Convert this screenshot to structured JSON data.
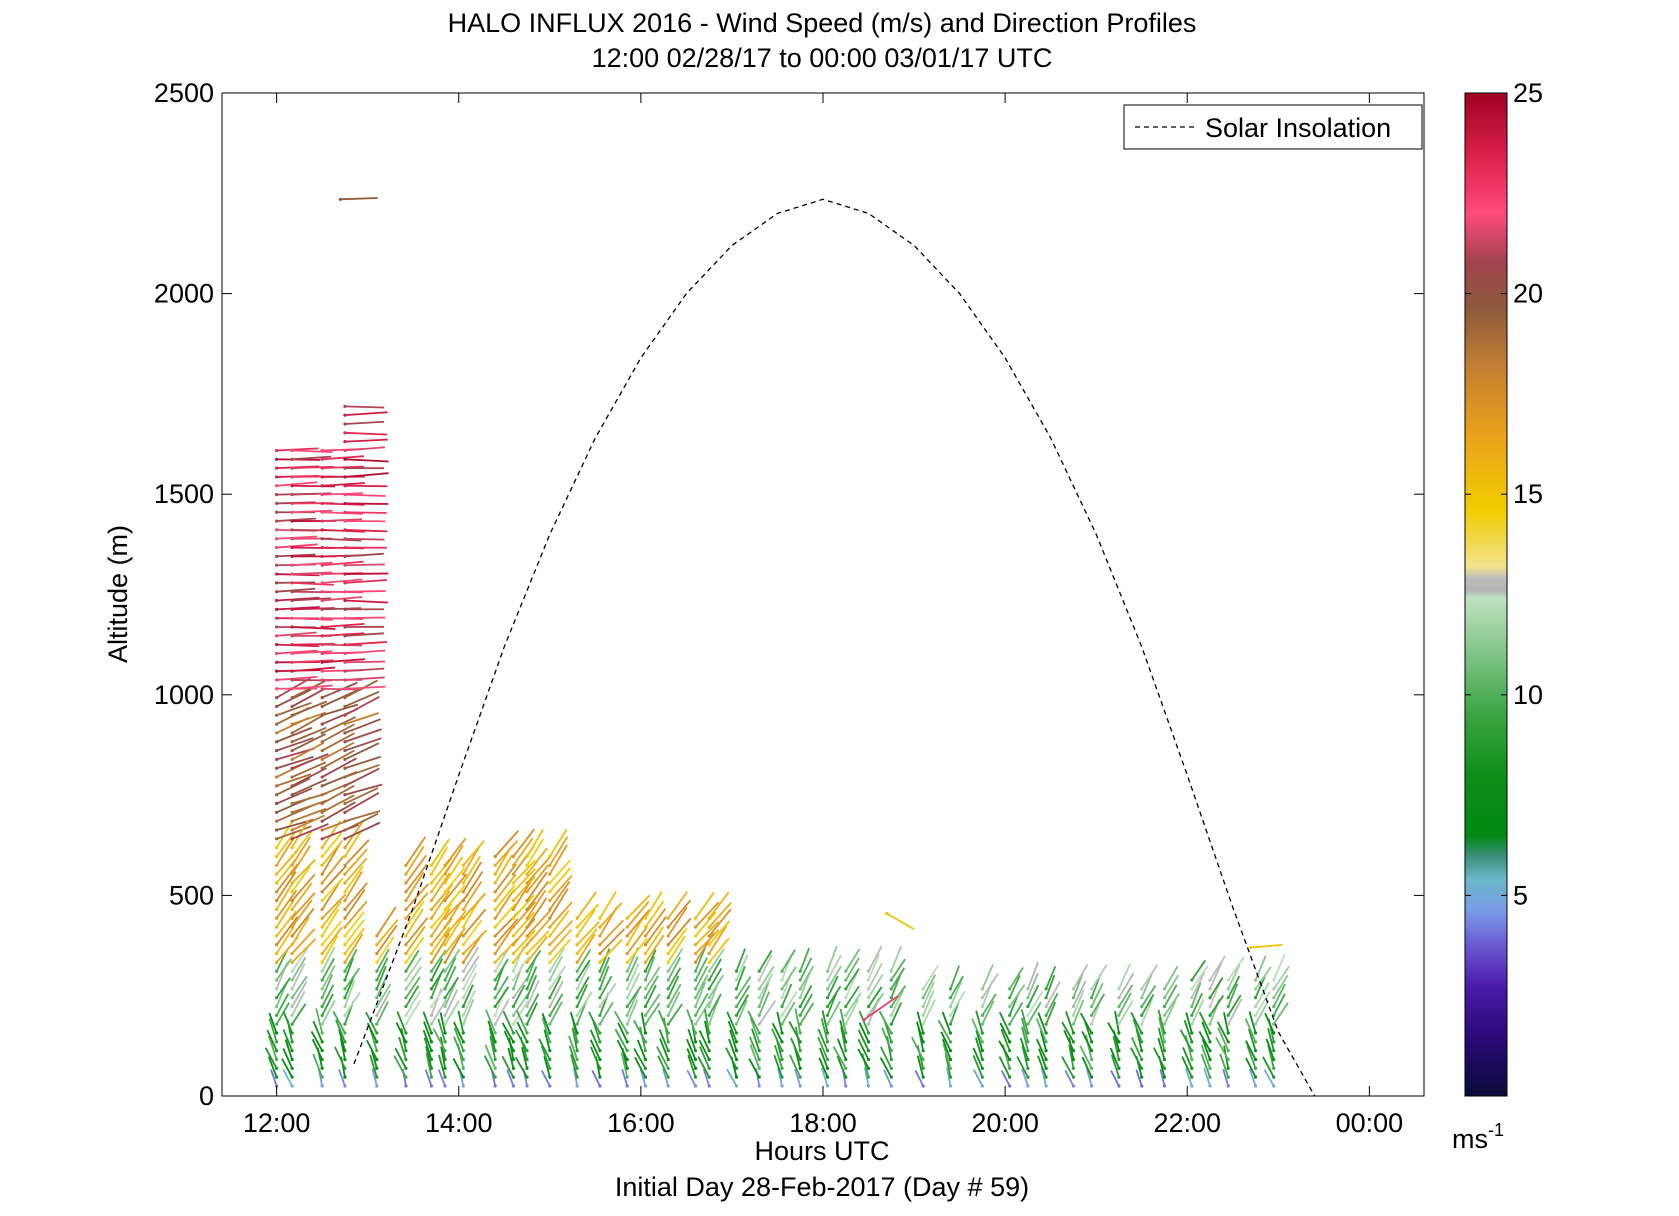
{
  "chart_data": {
    "type": "wind-barb-profile",
    "title": "HALO INFLUX 2016 - Wind Speed (m/s) and Direction Profiles",
    "subtitle": "12:00 02/28/17 to 00:00 03/01/17  UTC",
    "xlabel": "Hours UTC",
    "x_sublabel": "Initial Day 28-Feb-2017 (Day # 59)",
    "ylabel": "Altitude (m)",
    "xlim": [
      11.4,
      24.6
    ],
    "ylim": [
      0,
      2500
    ],
    "x_ticks": [
      12,
      14,
      16,
      18,
      20,
      22,
      24
    ],
    "x_tick_labels": [
      "12:00",
      "14:00",
      "16:00",
      "18:00",
      "20:00",
      "22:00",
      "00:00"
    ],
    "y_ticks": [
      0,
      500,
      1000,
      1500,
      2000,
      2500
    ],
    "y_tick_labels": [
      "0",
      "500",
      "1000",
      "1500",
      "2000",
      "2500"
    ],
    "legend": {
      "placement": "top-right",
      "entries": [
        {
          "label": "Solar Insolation",
          "style": "dashed",
          "color": "#000000"
        }
      ]
    },
    "solar_insolation": {
      "x": [
        12.85,
        13.5,
        14.0,
        14.5,
        15.0,
        15.5,
        16.0,
        16.5,
        17.0,
        17.5,
        18.0,
        18.5,
        19.0,
        19.5,
        20.0,
        20.5,
        21.0,
        21.5,
        22.0,
        22.5,
        23.0,
        23.4
      ],
      "y": [
        80,
        470,
        800,
        1120,
        1400,
        1640,
        1840,
        2000,
        2120,
        2200,
        2235,
        2200,
        2120,
        2000,
        1840,
        1640,
        1400,
        1120,
        800,
        470,
        160,
        0
      ]
    },
    "colorbar": {
      "label": "ms",
      "label_exponent": "-1",
      "range": [
        0,
        25
      ],
      "ticks": [
        5,
        10,
        15,
        20,
        25
      ],
      "tick_labels": [
        "5",
        "10",
        "15",
        "20",
        "25"
      ],
      "colormap": [
        {
          "v": 0.0,
          "color": "#0b0b3a"
        },
        {
          "v": 1.5,
          "color": "#2a0a7a"
        },
        {
          "v": 2.7,
          "color": "#4a1aa8"
        },
        {
          "v": 3.7,
          "color": "#6a55d0"
        },
        {
          "v": 4.6,
          "color": "#7a9ae8"
        },
        {
          "v": 5.4,
          "color": "#6bb7c9"
        },
        {
          "v": 6.0,
          "color": "#3a8f78"
        },
        {
          "v": 6.5,
          "color": "#008a10"
        },
        {
          "v": 8.0,
          "color": "#0e8e16"
        },
        {
          "v": 9.5,
          "color": "#3aa542"
        },
        {
          "v": 11.0,
          "color": "#7fc486"
        },
        {
          "v": 12.4,
          "color": "#bfe3bf"
        },
        {
          "v": 12.6,
          "color": "#b5b5b5"
        },
        {
          "v": 12.9,
          "color": "#bdbdbd"
        },
        {
          "v": 13.2,
          "color": "#f3e38c"
        },
        {
          "v": 14.6,
          "color": "#f2cd00"
        },
        {
          "v": 16.5,
          "color": "#e9a21c"
        },
        {
          "v": 18.3,
          "color": "#c07c33"
        },
        {
          "v": 19.6,
          "color": "#8d5a3a"
        },
        {
          "v": 20.8,
          "color": "#a3434e"
        },
        {
          "v": 22.0,
          "color": "#ff4b7d"
        },
        {
          "v": 23.3,
          "color": "#e0244f"
        },
        {
          "v": 25.0,
          "color": "#a00022"
        }
      ]
    },
    "wind_barbs": {
      "profile_times": [
        12.0,
        12.17,
        12.5,
        12.75,
        13.1,
        13.42,
        13.7,
        13.85,
        14.05,
        14.4,
        14.6,
        14.75,
        15.0,
        15.3,
        15.55,
        15.85,
        16.05,
        16.3,
        16.6,
        16.75,
        17.05,
        17.3,
        17.55,
        17.75,
        18.05,
        18.25,
        18.5,
        18.75,
        19.1,
        19.4,
        19.75,
        20.05,
        20.25,
        20.45,
        20.75,
        20.95,
        21.25,
        21.5,
        21.75,
        22.05,
        22.25,
        22.45,
        22.75,
        22.95
      ],
      "comment_units": "altitude in m, speed in m/s, direction in degrees (meteorological, wind from)"
    }
  }
}
